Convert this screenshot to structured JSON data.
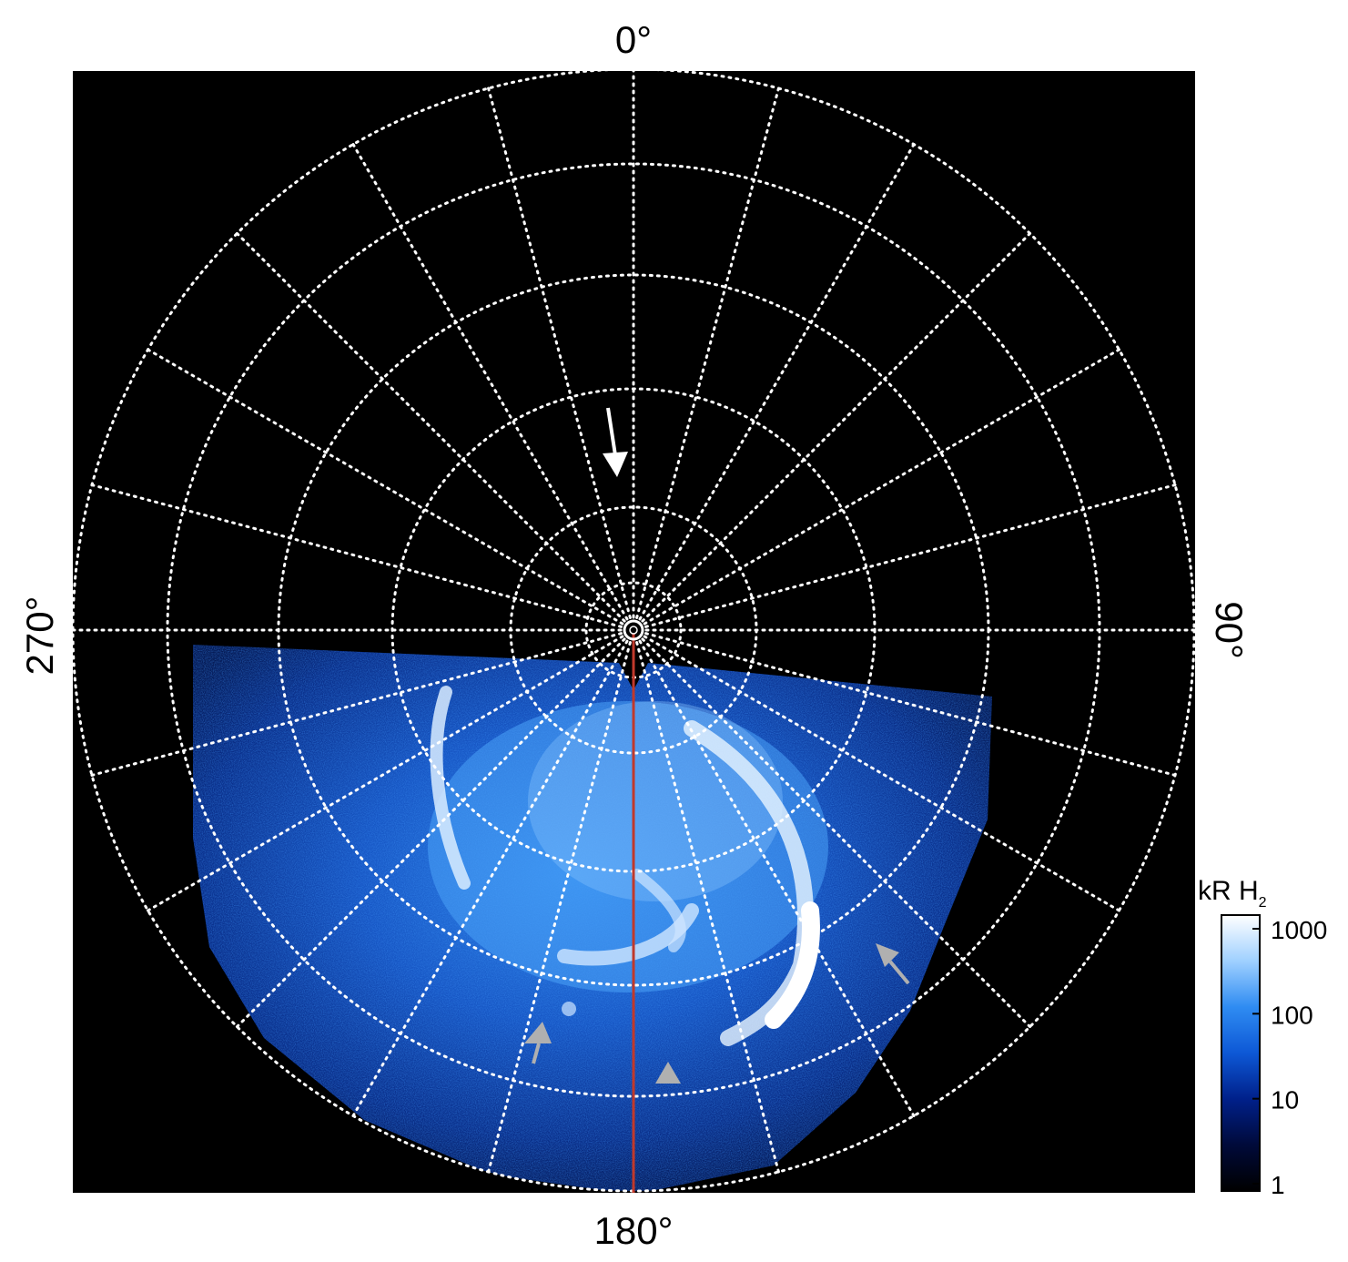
{
  "figure": {
    "longitude_labels": {
      "top": "0°",
      "bottom": "180°",
      "left": "270°",
      "right": "90°"
    },
    "colorbar": {
      "label_prefix": "kR H",
      "label_subscript": "2",
      "ticks": [
        "1000",
        "100",
        "10",
        "1"
      ],
      "tick_values": [
        1000,
        100,
        10,
        1
      ],
      "scale": "log",
      "colors": [
        "#000000",
        "#000a3a",
        "#00208a",
        "#0d58d6",
        "#2f8cf2",
        "#9fd0ff",
        "#ffffff"
      ]
    },
    "colors": {
      "background": "#000000",
      "grid": "#ffffff",
      "meridian_line": "#c0392b",
      "arrow_white": "#ffffff",
      "arrow_gray": "#b0b0b0"
    },
    "grid": {
      "style": "dotted",
      "meridians_deg_step": 15,
      "circle_count": 5
    },
    "arrows": [
      {
        "name": "white-arrow",
        "color": "white"
      },
      {
        "name": "gray-arrow-right",
        "color": "gray"
      },
      {
        "name": "gray-arrow-left",
        "color": "gray"
      },
      {
        "name": "gray-arrow-bottom",
        "color": "gray"
      }
    ]
  }
}
